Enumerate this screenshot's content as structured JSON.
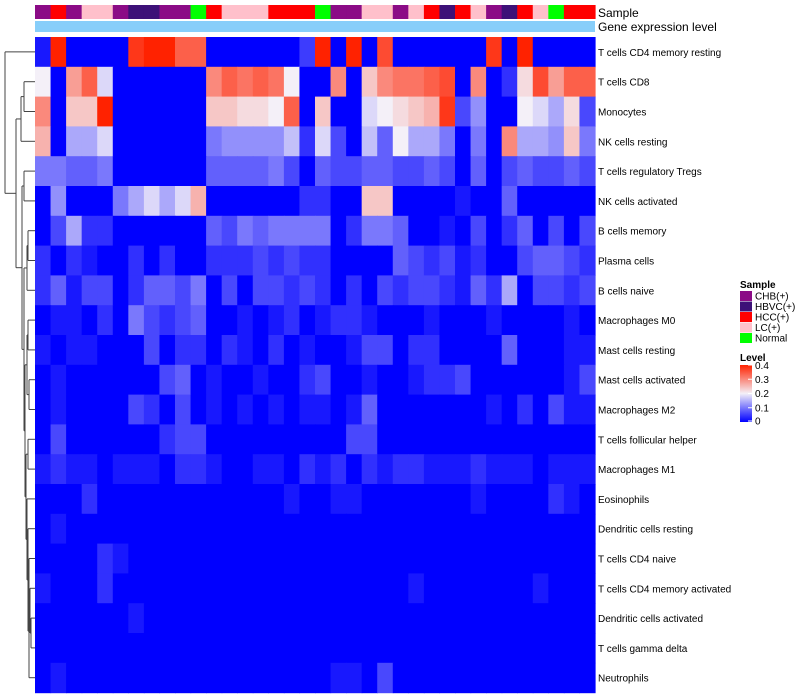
{
  "chart_data": {
    "type": "heatmap",
    "title": "",
    "annotation_labels": [
      "Sample",
      "Gene expression level"
    ],
    "sample_colors": {
      "CHB(+)": "#8b0b86",
      "HBVC(+)": "#3d1178",
      "HCC(+)": "#ff0000",
      "LC(+)": "#ffc0cb",
      "Normal": "#00ff00"
    },
    "gene_expression_bar_color": "#87cefa",
    "columns": [
      {
        "sample": "CHB(+)"
      },
      {
        "sample": "HCC(+)"
      },
      {
        "sample": "CHB(+)"
      },
      {
        "sample": "LC(+)"
      },
      {
        "sample": "LC(+)"
      },
      {
        "sample": "CHB(+)"
      },
      {
        "sample": "HBVC(+)"
      },
      {
        "sample": "HBVC(+)"
      },
      {
        "sample": "CHB(+)"
      },
      {
        "sample": "CHB(+)"
      },
      {
        "sample": "Normal"
      },
      {
        "sample": "HCC(+)"
      },
      {
        "sample": "LC(+)"
      },
      {
        "sample": "LC(+)"
      },
      {
        "sample": "LC(+)"
      },
      {
        "sample": "HCC(+)"
      },
      {
        "sample": "HCC(+)"
      },
      {
        "sample": "HCC(+)"
      },
      {
        "sample": "Normal"
      },
      {
        "sample": "CHB(+)"
      },
      {
        "sample": "CHB(+)"
      },
      {
        "sample": "LC(+)"
      },
      {
        "sample": "LC(+)"
      },
      {
        "sample": "CHB(+)"
      },
      {
        "sample": "LC(+)"
      },
      {
        "sample": "HCC(+)"
      },
      {
        "sample": "HBVC(+)"
      },
      {
        "sample": "HCC(+)"
      },
      {
        "sample": "LC(+)"
      },
      {
        "sample": "CHB(+)"
      },
      {
        "sample": "HBVC(+)"
      },
      {
        "sample": "HCC(+)"
      },
      {
        "sample": "LC(+)"
      },
      {
        "sample": "Normal"
      },
      {
        "sample": "HCC(+)"
      },
      {
        "sample": "HCC(+)"
      }
    ],
    "rows": [
      {
        "label": "T cells CD4 memory resting",
        "values": [
          0.02,
          0.4,
          0.0,
          0.0,
          0.0,
          0.0,
          0.38,
          0.4,
          0.4,
          0.34,
          0.34,
          0.0,
          0.0,
          0.0,
          0.0,
          0.0,
          0.0,
          0.05,
          0.4,
          0.0,
          0.4,
          0.0,
          0.36,
          0.0,
          0.0,
          0.0,
          0.0,
          0.0,
          0.0,
          0.38,
          0.0,
          0.4,
          0.0,
          0.0,
          0.0,
          0.0
        ]
      },
      {
        "label": "T cells CD8",
        "values": [
          0.2,
          0.0,
          0.28,
          0.34,
          0.18,
          0.0,
          0.0,
          0.0,
          0.0,
          0.0,
          0.0,
          0.3,
          0.34,
          0.32,
          0.34,
          0.32,
          0.2,
          0.0,
          0.0,
          0.3,
          0.0,
          0.24,
          0.3,
          0.32,
          0.32,
          0.34,
          0.36,
          0.0,
          0.3,
          0.0,
          0.04,
          0.22,
          0.36,
          0.28,
          0.34,
          0.34
        ]
      },
      {
        "label": "Monocytes",
        "values": [
          0.3,
          0.0,
          0.24,
          0.24,
          0.4,
          0.0,
          0.0,
          0.0,
          0.0,
          0.0,
          0.0,
          0.24,
          0.24,
          0.22,
          0.22,
          0.2,
          0.34,
          0.0,
          0.24,
          0.0,
          0.0,
          0.18,
          0.2,
          0.22,
          0.24,
          0.26,
          0.38,
          0.06,
          0.12,
          0.0,
          0.0,
          0.2,
          0.18,
          0.14,
          0.22,
          0.06
        ]
      },
      {
        "label": "NK cells resting",
        "values": [
          0.26,
          0.0,
          0.14,
          0.14,
          0.18,
          0.0,
          0.0,
          0.0,
          0.0,
          0.0,
          0.0,
          0.1,
          0.12,
          0.12,
          0.12,
          0.12,
          0.16,
          0.04,
          0.18,
          0.06,
          0.0,
          0.16,
          0.08,
          0.2,
          0.14,
          0.14,
          0.1,
          0.0,
          0.1,
          0.0,
          0.3,
          0.14,
          0.14,
          0.12,
          0.24,
          0.1
        ]
      },
      {
        "label": "T cells regulatory  Tregs",
        "values": [
          0.1,
          0.1,
          0.08,
          0.08,
          0.1,
          0.0,
          0.0,
          0.0,
          0.0,
          0.0,
          0.0,
          0.08,
          0.08,
          0.08,
          0.08,
          0.1,
          0.06,
          0.0,
          0.08,
          0.06,
          0.06,
          0.08,
          0.08,
          0.06,
          0.06,
          0.08,
          0.06,
          0.0,
          0.08,
          0.0,
          0.06,
          0.08,
          0.06,
          0.06,
          0.08,
          0.06
        ]
      },
      {
        "label": "NK cells activated",
        "values": [
          0.0,
          0.12,
          0.0,
          0.0,
          0.0,
          0.1,
          0.14,
          0.18,
          0.14,
          0.18,
          0.26,
          0.0,
          0.0,
          0.0,
          0.0,
          0.0,
          0.0,
          0.04,
          0.04,
          0.0,
          0.0,
          0.24,
          0.24,
          0.0,
          0.0,
          0.0,
          0.0,
          0.02,
          0.0,
          0.0,
          0.08,
          0.0,
          0.0,
          0.0,
          0.0,
          0.0
        ]
      },
      {
        "label": "B cells memory",
        "values": [
          0.0,
          0.06,
          0.14,
          0.04,
          0.04,
          0.0,
          0.0,
          0.0,
          0.0,
          0.0,
          0.0,
          0.08,
          0.06,
          0.1,
          0.08,
          0.1,
          0.1,
          0.1,
          0.1,
          0.0,
          0.04,
          0.1,
          0.1,
          0.08,
          0.0,
          0.0,
          0.02,
          0.0,
          0.06,
          0.0,
          0.04,
          0.08,
          0.0,
          0.06,
          0.0,
          0.06
        ]
      },
      {
        "label": "Plasma cells",
        "values": [
          0.04,
          0.0,
          0.04,
          0.02,
          0.0,
          0.0,
          0.04,
          0.0,
          0.04,
          0.0,
          0.0,
          0.04,
          0.04,
          0.04,
          0.06,
          0.04,
          0.06,
          0.04,
          0.04,
          0.0,
          0.0,
          0.0,
          0.0,
          0.08,
          0.06,
          0.04,
          0.06,
          0.02,
          0.04,
          0.0,
          0.0,
          0.06,
          0.08,
          0.08,
          0.06,
          0.04
        ]
      },
      {
        "label": "B cells naive",
        "values": [
          0.04,
          0.08,
          0.02,
          0.06,
          0.06,
          0.0,
          0.04,
          0.08,
          0.08,
          0.06,
          0.1,
          0.0,
          0.06,
          0.0,
          0.06,
          0.06,
          0.04,
          0.06,
          0.04,
          0.0,
          0.04,
          0.0,
          0.06,
          0.04,
          0.06,
          0.06,
          0.04,
          0.02,
          0.08,
          0.04,
          0.14,
          0.0,
          0.06,
          0.06,
          0.04,
          0.06
        ]
      },
      {
        "label": "Macrophages M0",
        "values": [
          0.0,
          0.02,
          0.02,
          0.0,
          0.04,
          0.0,
          0.1,
          0.06,
          0.04,
          0.06,
          0.08,
          0.0,
          0.0,
          0.02,
          0.0,
          0.02,
          0.04,
          0.0,
          0.02,
          0.04,
          0.04,
          0.02,
          0.0,
          0.0,
          0.0,
          0.02,
          0.0,
          0.0,
          0.0,
          0.02,
          0.0,
          0.0,
          0.0,
          0.0,
          0.02,
          0.0
        ]
      },
      {
        "label": "Mast cells resting",
        "values": [
          0.02,
          0.0,
          0.02,
          0.02,
          0.0,
          0.0,
          0.0,
          0.06,
          0.0,
          0.04,
          0.04,
          0.0,
          0.04,
          0.02,
          0.0,
          0.04,
          0.0,
          0.02,
          0.0,
          0.0,
          0.02,
          0.06,
          0.06,
          0.0,
          0.04,
          0.04,
          0.0,
          0.0,
          0.0,
          0.0,
          0.08,
          0.0,
          0.0,
          0.0,
          0.02,
          0.02
        ]
      },
      {
        "label": "Mast cells activated",
        "values": [
          0.0,
          0.02,
          0.0,
          0.0,
          0.0,
          0.0,
          0.0,
          0.0,
          0.06,
          0.08,
          0.0,
          0.02,
          0.0,
          0.0,
          0.02,
          0.0,
          0.0,
          0.04,
          0.06,
          0.0,
          0.0,
          0.02,
          0.0,
          0.0,
          0.02,
          0.04,
          0.04,
          0.06,
          0.0,
          0.0,
          0.0,
          0.0,
          0.0,
          0.0,
          0.02,
          0.06
        ]
      },
      {
        "label": "Macrophages M2",
        "values": [
          0.0,
          0.02,
          0.0,
          0.0,
          0.0,
          0.0,
          0.06,
          0.04,
          0.0,
          0.06,
          0.0,
          0.02,
          0.0,
          0.02,
          0.0,
          0.02,
          0.0,
          0.02,
          0.02,
          0.0,
          0.02,
          0.08,
          0.0,
          0.0,
          0.0,
          0.0,
          0.0,
          0.0,
          0.0,
          0.02,
          0.0,
          0.04,
          0.0,
          0.06,
          0.02,
          0.02
        ]
      },
      {
        "label": "T cells follicular helper",
        "values": [
          0.0,
          0.06,
          0.0,
          0.0,
          0.0,
          0.0,
          0.0,
          0.0,
          0.04,
          0.06,
          0.06,
          0.0,
          0.0,
          0.0,
          0.0,
          0.0,
          0.0,
          0.0,
          0.0,
          0.0,
          0.06,
          0.06,
          0.0,
          0.0,
          0.0,
          0.0,
          0.0,
          0.0,
          0.0,
          0.0,
          0.0,
          0.0,
          0.0,
          0.0,
          0.0,
          0.0
        ]
      },
      {
        "label": "Macrophages M1",
        "values": [
          0.02,
          0.04,
          0.02,
          0.02,
          0.0,
          0.02,
          0.02,
          0.02,
          0.0,
          0.04,
          0.04,
          0.02,
          0.0,
          0.0,
          0.02,
          0.02,
          0.0,
          0.04,
          0.02,
          0.04,
          0.0,
          0.04,
          0.02,
          0.04,
          0.04,
          0.02,
          0.02,
          0.02,
          0.04,
          0.02,
          0.02,
          0.02,
          0.0,
          0.02,
          0.02,
          0.02
        ]
      },
      {
        "label": "Eosinophils",
        "values": [
          0.0,
          0.0,
          0.0,
          0.04,
          0.0,
          0.0,
          0.0,
          0.0,
          0.0,
          0.0,
          0.0,
          0.0,
          0.0,
          0.0,
          0.0,
          0.0,
          0.02,
          0.0,
          0.0,
          0.02,
          0.02,
          0.0,
          0.0,
          0.0,
          0.0,
          0.0,
          0.0,
          0.0,
          0.02,
          0.0,
          0.0,
          0.0,
          0.0,
          0.04,
          0.02,
          0.0
        ]
      },
      {
        "label": "Dendritic cells resting",
        "values": [
          0.0,
          0.02,
          0.0,
          0.0,
          0.0,
          0.0,
          0.0,
          0.0,
          0.0,
          0.0,
          0.0,
          0.0,
          0.0,
          0.0,
          0.0,
          0.0,
          0.0,
          0.0,
          0.0,
          0.0,
          0.0,
          0.0,
          0.0,
          0.0,
          0.0,
          0.0,
          0.0,
          0.0,
          0.0,
          0.0,
          0.0,
          0.0,
          0.0,
          0.0,
          0.0,
          0.0
        ]
      },
      {
        "label": "T cells CD4 naive",
        "values": [
          0.0,
          0.0,
          0.0,
          0.0,
          0.04,
          0.02,
          0.0,
          0.0,
          0.0,
          0.0,
          0.0,
          0.0,
          0.0,
          0.0,
          0.0,
          0.0,
          0.0,
          0.0,
          0.0,
          0.0,
          0.0,
          0.0,
          0.0,
          0.0,
          0.0,
          0.0,
          0.0,
          0.0,
          0.0,
          0.0,
          0.0,
          0.0,
          0.0,
          0.0,
          0.0,
          0.0
        ]
      },
      {
        "label": "T cells CD4 memory activated",
        "values": [
          0.02,
          0.0,
          0.0,
          0.0,
          0.04,
          0.0,
          0.0,
          0.0,
          0.0,
          0.0,
          0.0,
          0.0,
          0.0,
          0.0,
          0.0,
          0.0,
          0.0,
          0.0,
          0.0,
          0.0,
          0.0,
          0.0,
          0.0,
          0.0,
          0.02,
          0.0,
          0.0,
          0.0,
          0.0,
          0.0,
          0.0,
          0.0,
          0.02,
          0.0,
          0.0,
          0.0
        ]
      },
      {
        "label": "Dendritic cells activated",
        "values": [
          0.0,
          0.0,
          0.0,
          0.0,
          0.0,
          0.0,
          0.02,
          0.0,
          0.0,
          0.0,
          0.0,
          0.0,
          0.0,
          0.0,
          0.0,
          0.0,
          0.0,
          0.0,
          0.0,
          0.0,
          0.0,
          0.0,
          0.0,
          0.0,
          0.0,
          0.0,
          0.0,
          0.0,
          0.0,
          0.0,
          0.0,
          0.0,
          0.0,
          0.0,
          0.0,
          0.0
        ]
      },
      {
        "label": "T cells gamma delta",
        "values": [
          0.0,
          0.0,
          0.0,
          0.0,
          0.0,
          0.0,
          0.0,
          0.0,
          0.0,
          0.0,
          0.0,
          0.0,
          0.0,
          0.0,
          0.0,
          0.0,
          0.0,
          0.0,
          0.0,
          0.0,
          0.0,
          0.0,
          0.0,
          0.0,
          0.0,
          0.0,
          0.0,
          0.0,
          0.0,
          0.0,
          0.0,
          0.0,
          0.0,
          0.0,
          0.0,
          0.0
        ]
      },
      {
        "label": "Neutrophils",
        "values": [
          0.0,
          0.02,
          0.0,
          0.0,
          0.0,
          0.0,
          0.0,
          0.0,
          0.0,
          0.0,
          0.0,
          0.0,
          0.0,
          0.0,
          0.0,
          0.0,
          0.0,
          0.0,
          0.0,
          0.02,
          0.02,
          0.0,
          0.06,
          0.0,
          0.0,
          0.0,
          0.0,
          0.0,
          0.0,
          0.0,
          0.0,
          0.0,
          0.0,
          0.0,
          0.0,
          0.0
        ]
      }
    ],
    "color_scale": {
      "min": 0,
      "max": 0.4,
      "stops": [
        {
          "value": 0.0,
          "color": "#0000ff"
        },
        {
          "value": 0.2,
          "color": "#f4f0f8"
        },
        {
          "value": 0.4,
          "color": "#ff2200"
        }
      ]
    },
    "legend": {
      "sample_title": "Sample",
      "sample_entries": [
        "CHB(+)",
        "HBVC(+)",
        "HCC(+)",
        "LC(+)",
        "Normal"
      ],
      "level_title": "Level",
      "level_ticks": [
        {
          "value": 0.4,
          "label": "0.4"
        },
        {
          "value": 0.3,
          "label": "0.3"
        },
        {
          "value": 0.2,
          "label": "0.2"
        },
        {
          "value": 0.1,
          "label": "0.1"
        },
        {
          "value": 0.0,
          "label": "0"
        }
      ]
    }
  }
}
